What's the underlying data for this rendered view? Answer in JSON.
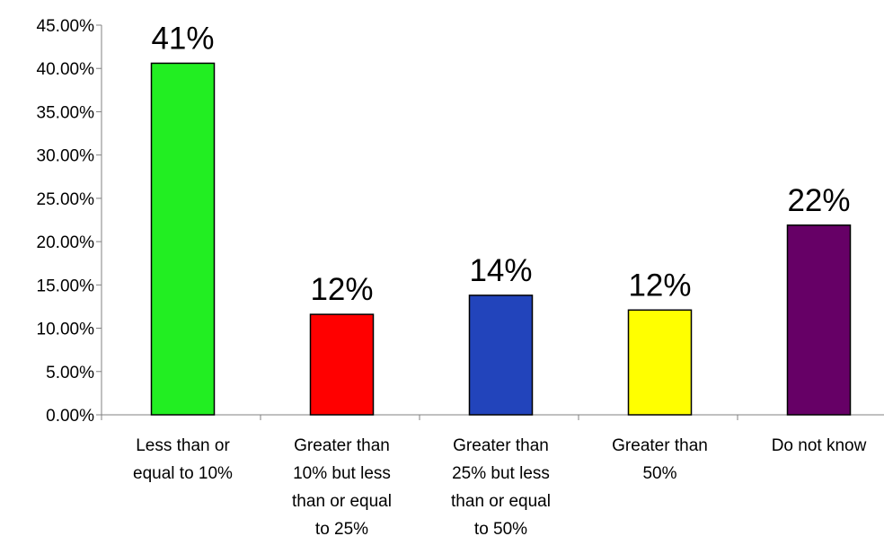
{
  "chart_data": {
    "type": "bar",
    "title": "",
    "xlabel": "",
    "ylabel": "",
    "categories": [
      [
        "Less than or",
        "equal to 10%"
      ],
      [
        "Greater than",
        "10% but less",
        "than or equal",
        "to 25%"
      ],
      [
        "Greater than",
        "25% but less",
        "than or equal",
        "to 50%"
      ],
      [
        "Greater than",
        "50%"
      ],
      [
        "Do not know"
      ]
    ],
    "values": [
      0.406,
      0.116,
      0.138,
      0.121,
      0.219
    ],
    "data_labels": [
      "41%",
      "12%",
      "14%",
      "12%",
      "22%"
    ],
    "colors": [
      "#22ee22",
      "#ff0000",
      "#2244bb",
      "#ffff00",
      "#660066"
    ],
    "ylim": [
      0,
      0.45
    ],
    "y_ticks": [
      0,
      0.05,
      0.1,
      0.15,
      0.2,
      0.25,
      0.3,
      0.35,
      0.4,
      0.45
    ],
    "y_tick_labels": [
      "0.00%",
      "5.00%",
      "10.00%",
      "15.00%",
      "20.00%",
      "25.00%",
      "30.00%",
      "35.00%",
      "40.00%",
      "45.00%"
    ],
    "grid": false,
    "legend": "none"
  }
}
